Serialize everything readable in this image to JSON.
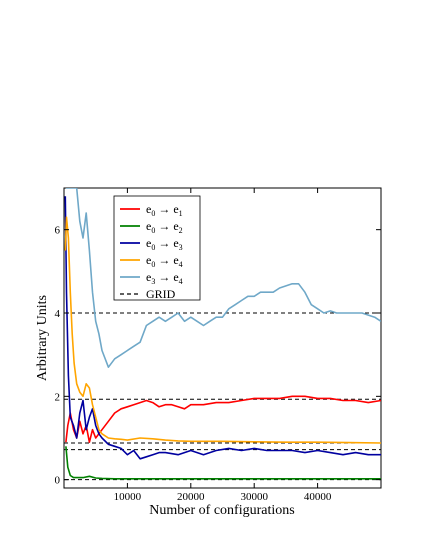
{
  "chart_data": {
    "type": "line",
    "xlabel": "Number of configurations",
    "ylabel": "Arbitrary Units",
    "xlim": [
      0,
      50000
    ],
    "ylim": [
      -0.2,
      7.0
    ],
    "x_ticks": [
      10000,
      20000,
      30000,
      40000
    ],
    "y_ticks": [
      0,
      2,
      4,
      6
    ],
    "legend_position": "top-left",
    "grid": false,
    "grid_levels": [
      0.0,
      0.72,
      0.88,
      1.93,
      4.0
    ],
    "series": [
      {
        "name": "e0 → e1",
        "legend": {
          "a": "e",
          "asub": "0",
          "b": "e",
          "bsub": "1"
        },
        "color": "#ff0000",
        "x": [
          300,
          600,
          1000,
          1500,
          2000,
          2500,
          3000,
          3500,
          4000,
          4500,
          5000,
          6000,
          7000,
          8000,
          9000,
          10000,
          11000,
          12000,
          13000,
          14000,
          15000,
          16000,
          17000,
          18000,
          19000,
          20000,
          22000,
          24000,
          26000,
          28000,
          30000,
          32000,
          34000,
          36000,
          38000,
          40000,
          42000,
          44000,
          46000,
          48000,
          50000
        ],
        "y": [
          0.9,
          1.3,
          1.6,
          1.2,
          1.0,
          1.4,
          1.1,
          1.3,
          0.9,
          1.2,
          1.0,
          1.2,
          1.4,
          1.6,
          1.7,
          1.75,
          1.8,
          1.85,
          1.9,
          1.85,
          1.75,
          1.8,
          1.8,
          1.75,
          1.7,
          1.8,
          1.8,
          1.85,
          1.85,
          1.9,
          1.95,
          1.95,
          1.95,
          2.0,
          2.0,
          1.95,
          1.95,
          1.9,
          1.9,
          1.85,
          1.9
        ]
      },
      {
        "name": "e0 → e2",
        "legend": {
          "a": "e",
          "asub": "0",
          "b": "e",
          "bsub": "2"
        },
        "color": "#008000",
        "x": [
          300,
          600,
          1000,
          1500,
          2000,
          3000,
          4000,
          5000,
          6000,
          8000,
          10000,
          20000,
          30000,
          40000,
          50000
        ],
        "y": [
          0.8,
          0.3,
          0.1,
          0.05,
          0.05,
          0.05,
          0.08,
          0.04,
          0.03,
          0.02,
          0.02,
          0.02,
          0.02,
          0.02,
          0.02
        ]
      },
      {
        "name": "e0 → e3",
        "legend": {
          "a": "e",
          "asub": "0",
          "b": "e",
          "bsub": "3"
        },
        "color": "#0000a0",
        "x": [
          200,
          400,
          700,
          1000,
          1500,
          2000,
          2500,
          3000,
          3500,
          4000,
          4500,
          5000,
          5500,
          6000,
          7000,
          8000,
          9000,
          10000,
          11000,
          12000,
          13000,
          14000,
          15000,
          16000,
          18000,
          20000,
          22000,
          24000,
          26000,
          28000,
          30000,
          32000,
          34000,
          36000,
          38000,
          40000,
          42000,
          44000,
          46000,
          48000,
          50000
        ],
        "y": [
          6.8,
          4.5,
          2.5,
          1.5,
          1.3,
          1.0,
          1.6,
          1.9,
          1.2,
          1.5,
          1.7,
          1.3,
          1.1,
          1.0,
          0.85,
          0.8,
          0.75,
          0.6,
          0.7,
          0.5,
          0.55,
          0.6,
          0.65,
          0.65,
          0.6,
          0.7,
          0.6,
          0.7,
          0.75,
          0.7,
          0.75,
          0.7,
          0.7,
          0.7,
          0.65,
          0.7,
          0.65,
          0.6,
          0.65,
          0.6,
          0.6
        ]
      },
      {
        "name": "e0 → e4",
        "legend": {
          "a": "e",
          "asub": "0",
          "b": "e",
          "bsub": "4"
        },
        "color": "#ffa500",
        "x": [
          200,
          400,
          700,
          1000,
          1300,
          1600,
          2000,
          2500,
          3000,
          3500,
          4000,
          4500,
          5000,
          5500,
          6000,
          7000,
          8000,
          9000,
          10000,
          12000,
          14000,
          16000,
          18000,
          20000,
          25000,
          30000,
          35000,
          40000,
          45000,
          50000
        ],
        "y": [
          5.5,
          6.3,
          5.8,
          4.5,
          3.5,
          2.8,
          2.3,
          2.1,
          2.0,
          2.3,
          2.2,
          1.8,
          1.5,
          1.2,
          1.1,
          1.0,
          0.98,
          0.97,
          0.95,
          1.0,
          0.98,
          0.95,
          0.93,
          0.92,
          0.92,
          0.91,
          0.9,
          0.9,
          0.89,
          0.88
        ]
      },
      {
        "name": "e3 → e4",
        "legend": {
          "a": "e",
          "asub": "3",
          "b": "e",
          "bsub": "4"
        },
        "color": "#6fa8c8",
        "x": [
          300,
          600,
          1000,
          1500,
          2000,
          2500,
          3000,
          3500,
          4000,
          4500,
          5000,
          5500,
          6000,
          7000,
          8000,
          9000,
          10000,
          11000,
          12000,
          13000,
          14000,
          15000,
          16000,
          17000,
          18000,
          19000,
          20000,
          21000,
          22000,
          23000,
          24000,
          25000,
          26000,
          27000,
          28000,
          29000,
          30000,
          31000,
          32000,
          33000,
          34000,
          35000,
          36000,
          37000,
          38000,
          39000,
          40000,
          41000,
          42000,
          43000,
          44000,
          45000,
          46000,
          47000,
          48000,
          49000,
          50000
        ],
        "y": [
          7.0,
          7.0,
          7.0,
          7.0,
          7.0,
          6.2,
          5.8,
          6.4,
          5.5,
          4.5,
          3.8,
          3.5,
          3.1,
          2.7,
          2.9,
          3.0,
          3.1,
          3.2,
          3.3,
          3.7,
          3.8,
          3.9,
          3.8,
          3.9,
          4.0,
          3.8,
          3.9,
          3.8,
          3.7,
          3.8,
          3.9,
          3.9,
          4.1,
          4.2,
          4.3,
          4.4,
          4.4,
          4.5,
          4.5,
          4.5,
          4.6,
          4.65,
          4.7,
          4.7,
          4.5,
          4.2,
          4.1,
          4.0,
          4.05,
          4.0,
          4.0,
          4.0,
          4.0,
          4.0,
          3.95,
          3.9,
          3.8
        ]
      }
    ],
    "reference": {
      "name": "GRID",
      "color": "#000000",
      "style": "dashed"
    }
  }
}
